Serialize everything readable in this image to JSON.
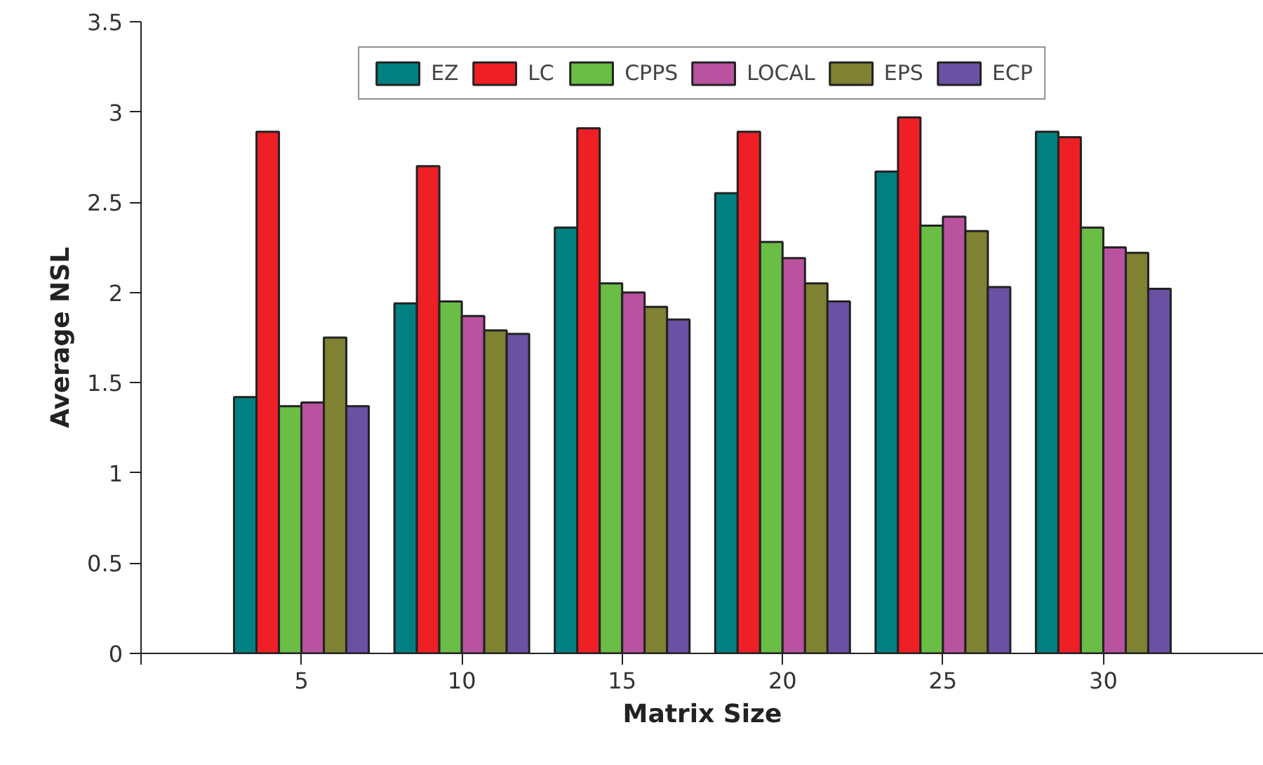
{
  "chart_data": {
    "type": "bar",
    "xlabel": "Matrix Size",
    "ylabel": "Average NSL",
    "x": [
      5,
      10,
      15,
      20,
      25,
      30
    ],
    "xlim": [
      0,
      35
    ],
    "xticks": [
      {
        "value": 0,
        "label": null
      },
      5,
      10,
      15,
      20,
      25,
      30
    ],
    "ylim": [
      0,
      3.5
    ],
    "yticks": [
      0,
      0.5,
      1,
      1.5,
      2,
      2.5,
      3,
      3.5
    ],
    "grid": false,
    "legend": "top",
    "series": [
      {
        "name": "EZ",
        "color": "#008080",
        "values": [
          1.42,
          1.94,
          2.36,
          2.55,
          2.67,
          2.89
        ]
      },
      {
        "name": "LC",
        "color": "#ee1f25",
        "values": [
          2.89,
          2.7,
          2.91,
          2.89,
          2.97,
          2.86
        ]
      },
      {
        "name": "CPPS",
        "color": "#6abd45",
        "values": [
          1.37,
          1.95,
          2.05,
          2.28,
          2.37,
          2.36
        ]
      },
      {
        "name": "LOCAL",
        "color": "#b9529f",
        "values": [
          1.39,
          1.87,
          2.0,
          2.19,
          2.42,
          2.25
        ]
      },
      {
        "name": "EPS",
        "color": "#7f8133",
        "values": [
          1.75,
          1.79,
          1.92,
          2.05,
          2.34,
          2.22
        ]
      },
      {
        "name": "ECP",
        "color": "#6a51a3",
        "values": [
          1.37,
          1.77,
          1.85,
          1.95,
          2.03,
          2.02
        ]
      }
    ]
  }
}
